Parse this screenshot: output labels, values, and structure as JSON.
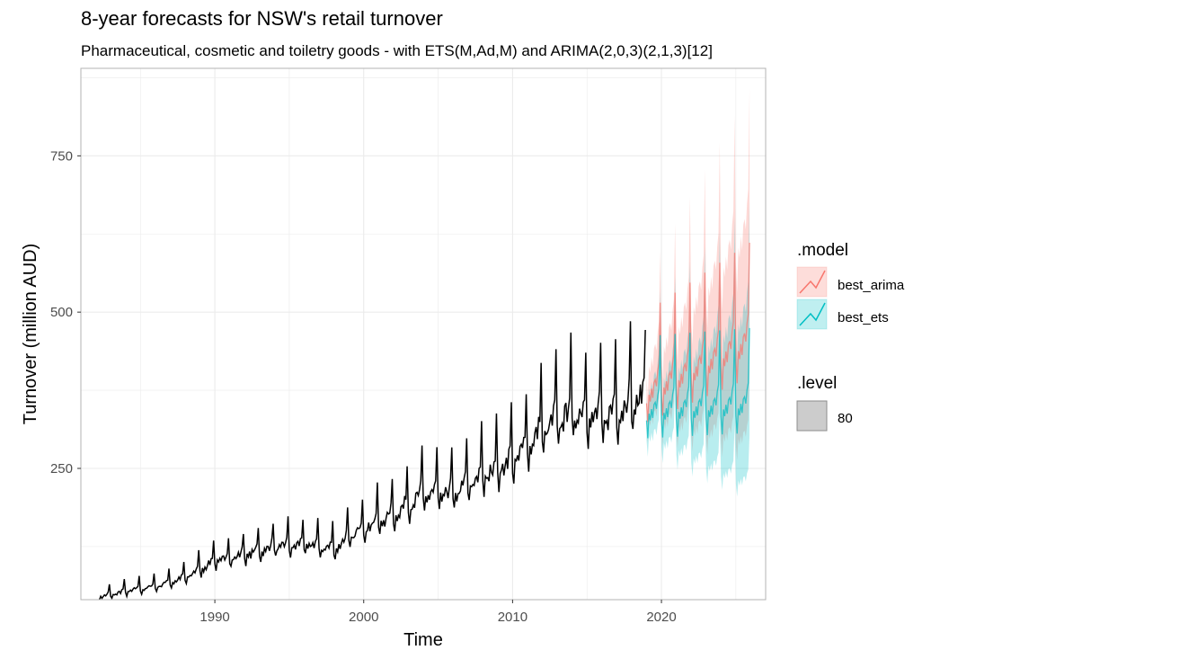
{
  "chart_data": {
    "type": "line",
    "title": "8-year forecasts for NSW's retail turnover",
    "subtitle": "Pharmaceutical, cosmetic and toiletry goods - with ETS(M,Ad,M) and ARIMA(2,0,3)(2,1,3)[12]",
    "xlabel": "Time",
    "ylabel": "Turnover (million AUD)",
    "xlim": [
      1981.0,
      2027.0
    ],
    "ylim": [
      40,
      890
    ],
    "x_ticks": [
      1990,
      2000,
      2010,
      2020
    ],
    "x_tick_labels": [
      "1990",
      "2000",
      "2010",
      "2020"
    ],
    "y_ticks": [
      250,
      500,
      750
    ],
    "y_tick_labels": [
      "250",
      "500",
      "750"
    ],
    "grid": true,
    "legend_position": "right",
    "historical": {
      "start_year": 1982.25,
      "end_year": 2018.92,
      "trend_points": [
        [
          1982.25,
          45
        ],
        [
          1984,
          55
        ],
        [
          1986,
          63
        ],
        [
          1988,
          77
        ],
        [
          1990,
          105
        ],
        [
          1992,
          115
        ],
        [
          1994,
          128
        ],
        [
          1996,
          132
        ],
        [
          1998,
          125
        ],
        [
          2000,
          160
        ],
        [
          2002,
          180
        ],
        [
          2004,
          215
        ],
        [
          2006,
          215
        ],
        [
          2008,
          245
        ],
        [
          2010,
          270
        ],
        [
          2012,
          320
        ],
        [
          2014,
          350
        ],
        [
          2016,
          340
        ],
        [
          2018,
          365
        ],
        [
          2018.92,
          375
        ]
      ]
    },
    "forecast_start": 2019.0,
    "forecast_end": 2025.92,
    "series": [
      {
        "name": "best_arima",
        "color": "#F8766D",
        "mean_start": 385,
        "mean_end": 470,
        "seasonal_peak": 1.2,
        "interval_80_halfwidth_start": 45,
        "interval_80_halfwidth_end": 190
      },
      {
        "name": "best_ets",
        "color": "#00BFC4",
        "mean_start": 355,
        "mean_end": 365,
        "seasonal_peak": 1.2,
        "interval_80_halfwidth_start": 40,
        "interval_80_halfwidth_end": 155
      }
    ],
    "legend": {
      "model_title": ".model",
      "model_entries": [
        "best_arima",
        "best_ets"
      ],
      "level_title": ".level",
      "level_entries": [
        "80"
      ]
    }
  }
}
